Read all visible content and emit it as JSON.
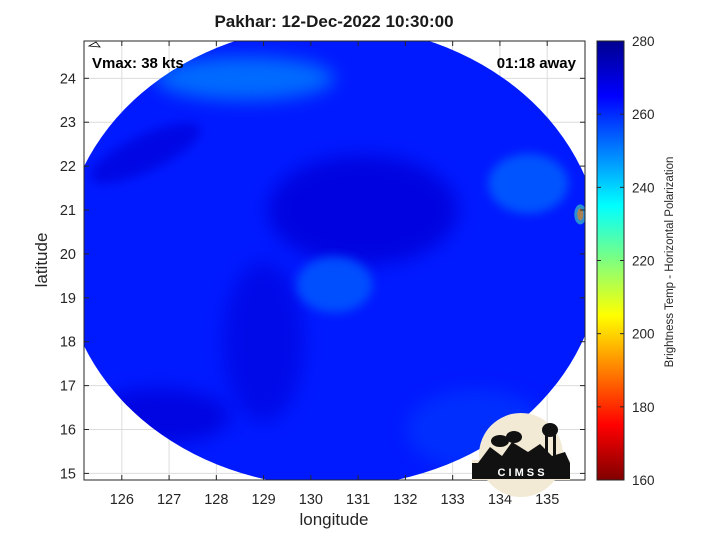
{
  "chart_data": {
    "type": "heatmap",
    "title": "Pakhar: 12-Dec-2022 10:30:00",
    "xlabel": "longitude",
    "ylabel": "latitude",
    "colorbar_label": "Brightness Temp - Horizontal Polarization",
    "xlim": [
      125.2,
      135.8
    ],
    "ylim": [
      14.85,
      24.85
    ],
    "xticks": [
      126,
      127,
      128,
      129,
      130,
      131,
      132,
      133,
      134,
      135
    ],
    "yticks": [
      15,
      16,
      17,
      18,
      19,
      20,
      21,
      22,
      23,
      24
    ],
    "colorbar_range": [
      160,
      280
    ],
    "colorbar_ticks": [
      160,
      180,
      200,
      220,
      240,
      260,
      280
    ],
    "colormap": "jet",
    "grid": true,
    "annotations": {
      "vmax": "Vmax: 38 kts",
      "time_offset": "01:18 away"
    },
    "logo_text": "C I M S S",
    "swath_center": [
      130.45,
      19.95
    ],
    "swath_radius_deg": [
      5.7,
      5.25
    ],
    "features": {
      "background_tb": 262,
      "warm_center_tb": 255,
      "warm_center_location": [
        130.5,
        19.3
      ],
      "cold_band_tb": 270,
      "hot_spot_tb": 175,
      "hot_spot_location": [
        135.7,
        20.9
      ]
    }
  }
}
